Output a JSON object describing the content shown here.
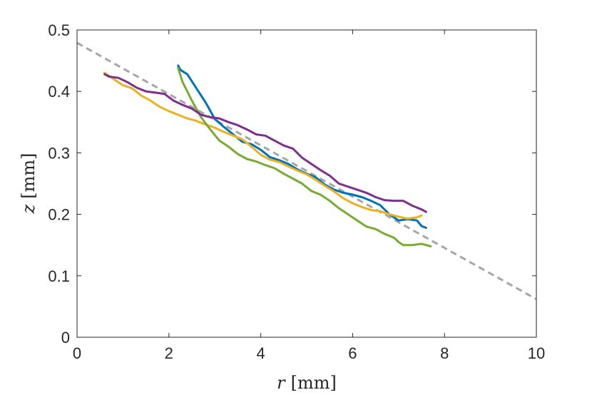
{
  "chart_data": {
    "type": "line",
    "xlabel": {
      "var": "r",
      "unit": "[mm]"
    },
    "ylabel": {
      "var": "z",
      "unit": "[mm]"
    },
    "xlim": [
      0,
      10
    ],
    "ylim": [
      0,
      0.5
    ],
    "xticks": [
      0,
      2,
      4,
      6,
      8,
      10
    ],
    "yticks": [
      0,
      0.1,
      0.2,
      0.3,
      0.4,
      0.5
    ],
    "xtick_labels": [
      "0",
      "2",
      "4",
      "6",
      "8",
      "10"
    ],
    "ytick_labels": [
      "0",
      "0.1",
      "0.2",
      "0.3",
      "0.4",
      "0.5"
    ],
    "grid": false,
    "box": true,
    "legend": null,
    "series": [
      {
        "color": "#0072BD",
        "x": [
          2.2,
          2.25,
          2.4,
          2.6,
          2.8,
          3.0,
          3.2,
          3.4,
          3.6,
          3.8,
          4.0,
          4.2,
          4.4,
          4.6,
          4.8,
          5.0,
          5.2,
          5.4,
          5.6,
          5.8,
          6.0,
          6.2,
          6.4,
          6.6,
          6.8,
          7.0,
          7.2,
          7.4,
          7.5,
          7.6
        ],
        "y": [
          0.442,
          0.435,
          0.428,
          0.405,
          0.382,
          0.355,
          0.342,
          0.33,
          0.318,
          0.314,
          0.305,
          0.293,
          0.288,
          0.282,
          0.273,
          0.266,
          0.26,
          0.248,
          0.24,
          0.235,
          0.232,
          0.228,
          0.222,
          0.215,
          0.2,
          0.19,
          0.192,
          0.19,
          0.181,
          0.178
        ]
      },
      {
        "color": "#EDB120",
        "x": [
          0.6,
          0.8,
          1.0,
          1.2,
          1.4,
          1.6,
          1.8,
          2.0,
          2.2,
          2.4,
          2.6,
          2.8,
          3.0,
          3.2,
          3.4,
          3.6,
          3.8,
          4.0,
          4.2,
          4.4,
          4.6,
          4.8,
          5.0,
          5.2,
          5.4,
          5.6,
          5.8,
          6.0,
          6.2,
          6.4,
          6.6,
          6.8,
          7.0,
          7.2,
          7.4,
          7.5
        ],
        "y": [
          0.43,
          0.42,
          0.41,
          0.405,
          0.393,
          0.385,
          0.375,
          0.368,
          0.362,
          0.356,
          0.352,
          0.346,
          0.341,
          0.334,
          0.328,
          0.322,
          0.31,
          0.297,
          0.289,
          0.285,
          0.278,
          0.271,
          0.265,
          0.256,
          0.246,
          0.237,
          0.226,
          0.218,
          0.212,
          0.207,
          0.205,
          0.2,
          0.196,
          0.193,
          0.195,
          0.198
        ]
      },
      {
        "color": "#77AC30",
        "x": [
          2.2,
          2.3,
          2.5,
          2.7,
          2.9,
          3.1,
          3.3,
          3.5,
          3.7,
          3.9,
          4.1,
          4.3,
          4.5,
          4.7,
          4.9,
          5.1,
          5.3,
          5.5,
          5.7,
          5.9,
          6.1,
          6.3,
          6.5,
          6.7,
          6.9,
          7.0,
          7.1,
          7.3,
          7.5,
          7.7
        ],
        "y": [
          0.438,
          0.415,
          0.385,
          0.358,
          0.338,
          0.32,
          0.31,
          0.298,
          0.29,
          0.286,
          0.28,
          0.275,
          0.266,
          0.258,
          0.25,
          0.238,
          0.232,
          0.222,
          0.21,
          0.2,
          0.19,
          0.18,
          0.176,
          0.168,
          0.162,
          0.155,
          0.15,
          0.15,
          0.152,
          0.148
        ]
      },
      {
        "color": "#7E2F8E",
        "x": [
          0.6,
          0.7,
          0.9,
          1.1,
          1.3,
          1.5,
          1.7,
          1.9,
          2.1,
          2.3,
          2.5,
          2.7,
          2.9,
          3.1,
          3.3,
          3.5,
          3.7,
          3.9,
          4.1,
          4.3,
          4.5,
          4.7,
          4.9,
          5.1,
          5.3,
          5.5,
          5.7,
          5.9,
          6.1,
          6.3,
          6.5,
          6.7,
          6.9,
          7.1,
          7.3,
          7.5,
          7.6
        ],
        "y": [
          0.428,
          0.424,
          0.422,
          0.415,
          0.406,
          0.4,
          0.398,
          0.396,
          0.385,
          0.378,
          0.372,
          0.362,
          0.358,
          0.356,
          0.35,
          0.345,
          0.338,
          0.33,
          0.328,
          0.32,
          0.312,
          0.307,
          0.292,
          0.282,
          0.272,
          0.263,
          0.25,
          0.245,
          0.24,
          0.235,
          0.228,
          0.223,
          0.222,
          0.222,
          0.214,
          0.208,
          0.204
        ]
      }
    ],
    "fit_line": {
      "color": "#A6A6A6",
      "style": "dashed",
      "x": [
        0,
        10
      ],
      "y": [
        0.479,
        0.062
      ]
    }
  }
}
